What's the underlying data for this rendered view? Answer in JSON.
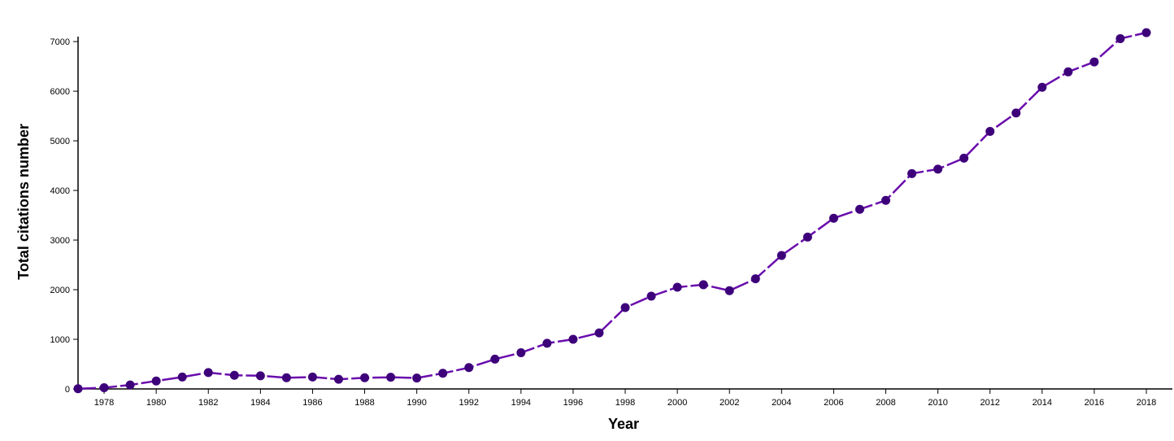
{
  "chart_data": {
    "type": "line",
    "title": "",
    "xlabel": "Year",
    "ylabel": "Total citations number",
    "xlim": [
      1977,
      2018
    ],
    "ylim": [
      0,
      7100
    ],
    "x_ticks": [
      1978,
      1980,
      1982,
      1984,
      1986,
      1988,
      1990,
      1992,
      1994,
      1996,
      1998,
      2000,
      2002,
      2004,
      2006,
      2008,
      2010,
      2012,
      2014,
      2016,
      2018
    ],
    "y_ticks": [
      0,
      1000,
      2000,
      3000,
      4000,
      5000,
      6000,
      7000
    ],
    "grid": false,
    "legend": "none",
    "color": "#6a0dad",
    "marker_color": "#3d007a",
    "series": [
      {
        "x": [
          1977,
          1978,
          1979,
          1980,
          1981,
          1982,
          1983,
          1984,
          1985,
          1986,
          1987,
          1988,
          1989,
          1990,
          1991,
          1992,
          1993,
          1994,
          1995,
          1996,
          1997,
          1998,
          1999,
          2000,
          2001,
          2002,
          2003,
          2004,
          2005,
          2006,
          2007,
          2008,
          2009,
          2010,
          2011,
          2012,
          2013,
          2014,
          2015,
          2016,
          2017,
          2018
        ],
        "values": [
          5,
          25,
          80,
          160,
          240,
          330,
          275,
          265,
          225,
          240,
          195,
          225,
          235,
          220,
          315,
          430,
          600,
          730,
          920,
          1000,
          1130,
          1640,
          1870,
          2050,
          2100,
          1980,
          2220,
          2690,
          3060,
          3440,
          3620,
          3800,
          4340,
          4430,
          4650,
          5190,
          5560,
          6080,
          6390,
          6590,
          7060,
          7180
        ]
      }
    ]
  }
}
